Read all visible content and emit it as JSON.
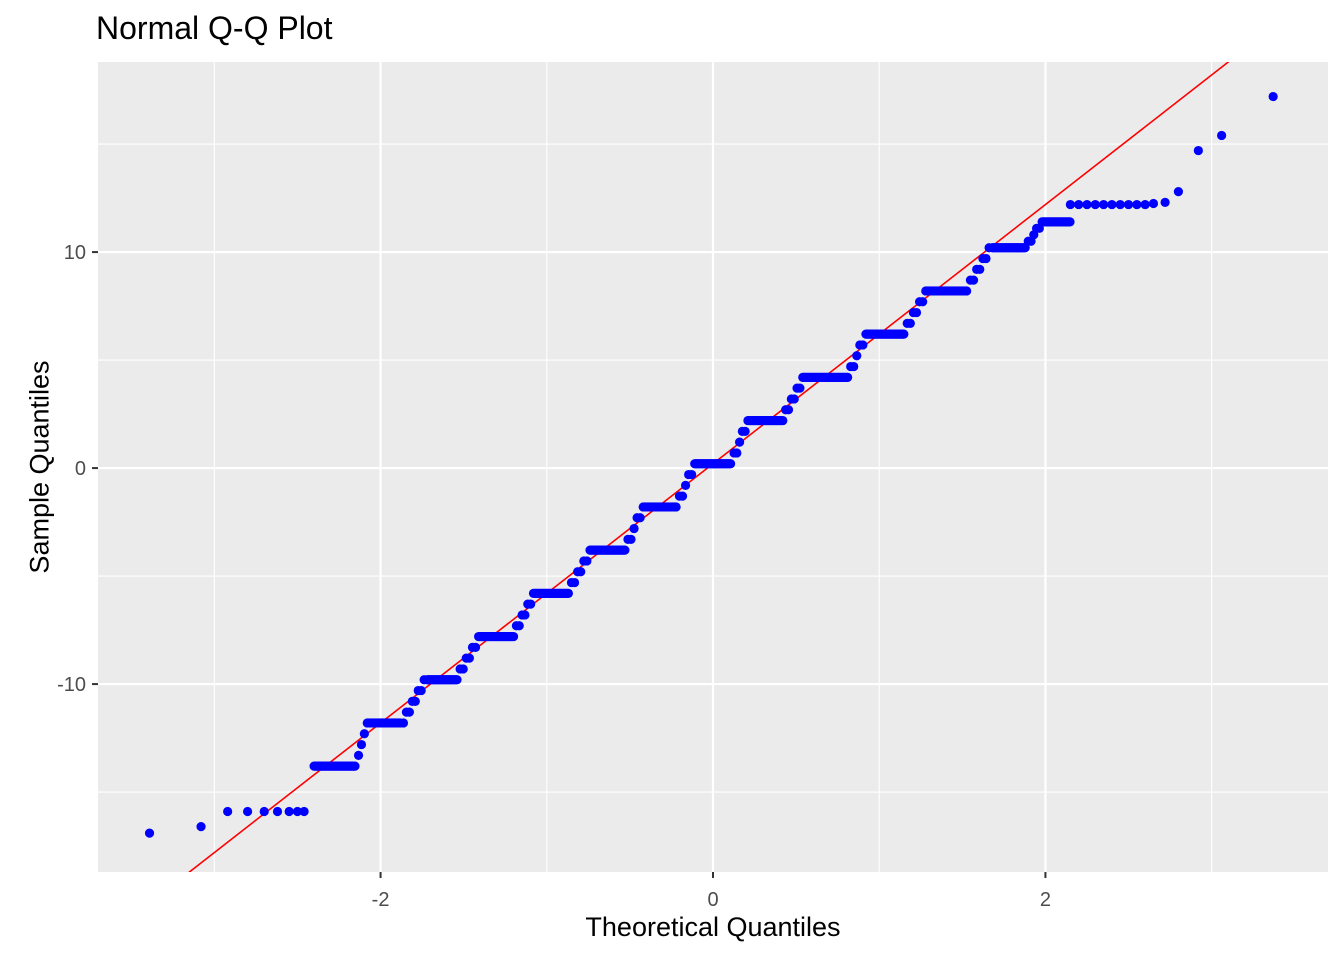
{
  "chart_data": {
    "type": "scatter",
    "title": "Normal Q-Q Plot",
    "xlabel": "Theoretical Quantiles",
    "ylabel": "Sample Quantiles",
    "xlim": [
      -3.7,
      3.7
    ],
    "ylim": [
      -18.7,
      18.8
    ],
    "x_ticks": [
      -2,
      0,
      2
    ],
    "x_tick_labels": [
      "-2",
      "0",
      "2"
    ],
    "y_ticks": [
      -10,
      0,
      10
    ],
    "y_tick_labels": [
      "-10",
      "0",
      "10"
    ],
    "grid": true,
    "legend": "none",
    "panel_color": "#EBEBEB",
    "point_color": "#0000FF",
    "line_color": "#FF0000",
    "reference_line": {
      "intercept": 0.2,
      "slope": 6.0
    },
    "sample_steps": [
      {
        "value": -13.8,
        "x_from": -2.4,
        "x_to": -2.15
      },
      {
        "value": -11.8,
        "x_from": -2.08,
        "x_to": -1.88
      },
      {
        "value": -9.8,
        "x_from": -1.72,
        "x_to": -1.54
      },
      {
        "value": -7.8,
        "x_from": -1.41,
        "x_to": -1.2
      },
      {
        "value": -5.8,
        "x_from": -1.08,
        "x_to": -0.87
      },
      {
        "value": -3.8,
        "x_from": -0.74,
        "x_to": -0.53
      },
      {
        "value": -1.8,
        "x_from": -0.42,
        "x_to": -0.22
      },
      {
        "value": 0.2,
        "x_from": -0.11,
        "x_to": 0.11
      },
      {
        "value": 2.2,
        "x_from": 0.21,
        "x_to": 0.42
      },
      {
        "value": 4.2,
        "x_from": 0.54,
        "x_to": 0.81
      },
      {
        "value": 6.2,
        "x_from": 0.92,
        "x_to": 1.15
      },
      {
        "value": 8.2,
        "x_from": 1.28,
        "x_to": 1.53
      },
      {
        "value": 10.2,
        "x_from": 1.68,
        "x_to": 1.88
      },
      {
        "value": 11.4,
        "x_from": 1.98,
        "x_to": 2.15
      }
    ],
    "outliers": [
      {
        "x": -3.39,
        "y": -16.9
      },
      {
        "x": -3.08,
        "y": -16.6
      },
      {
        "x": -2.92,
        "y": -15.9
      },
      {
        "x": -2.8,
        "y": -15.9
      },
      {
        "x": -2.7,
        "y": -15.9
      },
      {
        "x": -2.62,
        "y": -15.9
      },
      {
        "x": -2.55,
        "y": -15.9
      },
      {
        "x": -2.5,
        "y": -15.9
      },
      {
        "x": -2.46,
        "y": -15.9
      },
      {
        "x": 2.15,
        "y": 12.2
      },
      {
        "x": 2.2,
        "y": 12.2
      },
      {
        "x": 2.25,
        "y": 12.2
      },
      {
        "x": 2.3,
        "y": 12.2
      },
      {
        "x": 2.35,
        "y": 12.2
      },
      {
        "x": 2.4,
        "y": 12.2
      },
      {
        "x": 2.45,
        "y": 12.2
      },
      {
        "x": 2.5,
        "y": 12.2
      },
      {
        "x": 2.55,
        "y": 12.2
      },
      {
        "x": 2.6,
        "y": 12.2
      },
      {
        "x": 2.65,
        "y": 12.25
      },
      {
        "x": 2.72,
        "y": 12.3
      },
      {
        "x": 2.8,
        "y": 12.8
      },
      {
        "x": 2.92,
        "y": 14.7
      },
      {
        "x": 3.06,
        "y": 15.4
      },
      {
        "x": 3.37,
        "y": 17.2
      }
    ]
  }
}
